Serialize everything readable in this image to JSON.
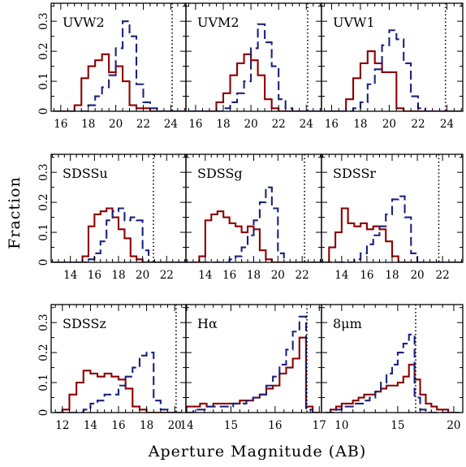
{
  "figure": {
    "ylabel": "Fraction",
    "xlabel": "Aperture Magnitude (AB)"
  },
  "colors": {
    "solid_series": "#8b0000",
    "dashed_series": "#1a237e",
    "axes": "#000000"
  },
  "chart_data": [
    {
      "type": "histogram",
      "label": "UVW2",
      "xlim": [
        15.3,
        25.1
      ],
      "ylim": [
        0,
        0.36
      ],
      "xticks": [
        16,
        18,
        20,
        22,
        24
      ],
      "yticks": [
        0,
        0.1,
        0.2,
        0.3
      ],
      "limit_line_x": 24.1,
      "bins": [
        15.5,
        16,
        16.5,
        17,
        17.5,
        18,
        18.5,
        19,
        19.5,
        20,
        20.5,
        21,
        21.5,
        22,
        22.5,
        23,
        23.5,
        24,
        24.5
      ],
      "bin_width": 0.5,
      "series": [
        {
          "style": "solid",
          "values": [
            0,
            0,
            0,
            0.02,
            0.11,
            0.15,
            0.17,
            0.19,
            0.13,
            0.15,
            0.1,
            0.02,
            0.01,
            0.01,
            0,
            0,
            0,
            0,
            0
          ]
        },
        {
          "style": "dashed",
          "values": [
            0,
            0,
            0,
            0,
            0,
            0.02,
            0.05,
            0.08,
            0.12,
            0.21,
            0.3,
            0.25,
            0.09,
            0.03,
            0.01,
            0,
            0,
            0,
            0
          ]
        }
      ]
    },
    {
      "type": "histogram",
      "label": "UVM2",
      "xlim": [
        15.3,
        25.1
      ],
      "ylim": [
        0,
        0.36
      ],
      "xticks": [
        16,
        18,
        20,
        22,
        24
      ],
      "yticks": [
        0,
        0.1,
        0.2,
        0.3
      ],
      "limit_line_x": 24.1,
      "bins": [
        15.5,
        16,
        16.5,
        17,
        17.5,
        18,
        18.5,
        19,
        19.5,
        20,
        20.5,
        21,
        21.5,
        22,
        22.5,
        23,
        23.5,
        24,
        24.5
      ],
      "bin_width": 0.5,
      "series": [
        {
          "style": "solid",
          "values": [
            0,
            0,
            0,
            0,
            0.03,
            0.06,
            0.12,
            0.16,
            0.19,
            0.17,
            0.12,
            0.04,
            0.01,
            0,
            0,
            0,
            0,
            0,
            0
          ]
        },
        {
          "style": "dashed",
          "values": [
            0,
            0,
            0,
            0,
            0,
            0.01,
            0.03,
            0.06,
            0.1,
            0.21,
            0.29,
            0.23,
            0.15,
            0.04,
            0.01,
            0,
            0,
            0,
            0
          ]
        }
      ]
    },
    {
      "type": "histogram",
      "label": "UVW1",
      "xlim": [
        15.3,
        25.1
      ],
      "ylim": [
        0,
        0.36
      ],
      "xticks": [
        16,
        18,
        20,
        22,
        24
      ],
      "yticks": [
        0,
        0.1,
        0.2,
        0.3
      ],
      "limit_line_x": 23.9,
      "bins": [
        15.5,
        16,
        16.5,
        17,
        17.5,
        18,
        18.5,
        19,
        19.5,
        20,
        20.5,
        21,
        21.5,
        22,
        22.5,
        23,
        23.5,
        24,
        24.5
      ],
      "bin_width": 0.5,
      "series": [
        {
          "style": "solid",
          "values": [
            0,
            0,
            0,
            0.04,
            0.11,
            0.16,
            0.2,
            0.16,
            0.13,
            0.13,
            0.01,
            0,
            0,
            0,
            0,
            0,
            0,
            0,
            0
          ]
        },
        {
          "style": "dashed",
          "values": [
            0,
            0,
            0,
            0,
            0.01,
            0.03,
            0.09,
            0.14,
            0.22,
            0.27,
            0.24,
            0.16,
            0.05,
            0.01,
            0,
            0,
            0,
            0,
            0
          ]
        }
      ]
    },
    {
      "type": "histogram",
      "label": "SDSSu",
      "xlim": [
        12.4,
        23.6
      ],
      "ylim": [
        0,
        0.36
      ],
      "xticks": [
        14,
        16,
        18,
        20,
        22
      ],
      "yticks": [
        0,
        0.1,
        0.2,
        0.3
      ],
      "limit_line_x": 20.9,
      "bins": [
        12.5,
        13,
        13.5,
        14,
        14.5,
        15,
        15.5,
        16,
        16.5,
        17,
        17.5,
        18,
        18.5,
        19,
        19.5,
        20,
        20.5,
        21,
        21.5,
        22,
        22.5,
        23
      ],
      "bin_width": 0.5,
      "series": [
        {
          "style": "solid",
          "values": [
            0,
            0,
            0,
            0,
            0,
            0.02,
            0.12,
            0.16,
            0.17,
            0.18,
            0.15,
            0.11,
            0.08,
            0.02,
            0.01,
            0,
            0,
            0,
            0,
            0,
            0,
            0
          ]
        },
        {
          "style": "dashed",
          "values": [
            0,
            0,
            0,
            0,
            0,
            0,
            0.01,
            0.03,
            0.07,
            0.14,
            0.17,
            0.18,
            0.14,
            0.15,
            0.14,
            0.04,
            0,
            0,
            0,
            0,
            0,
            0
          ]
        }
      ]
    },
    {
      "type": "histogram",
      "label": "SDSSg",
      "xlim": [
        12.4,
        23.6
      ],
      "ylim": [
        0,
        0.36
      ],
      "xticks": [
        14,
        16,
        18,
        20,
        22
      ],
      "yticks": [
        0,
        0.1,
        0.2,
        0.3
      ],
      "limit_line_x": 22.2,
      "bins": [
        12.5,
        13,
        13.5,
        14,
        14.5,
        15,
        15.5,
        16,
        16.5,
        17,
        17.5,
        18,
        18.5,
        19,
        19.5,
        20,
        20.5,
        21,
        21.5,
        22,
        22.5,
        23
      ],
      "bin_width": 0.5,
      "series": [
        {
          "style": "solid",
          "values": [
            0,
            0,
            0.02,
            0.14,
            0.16,
            0.17,
            0.15,
            0.13,
            0.12,
            0.1,
            0.12,
            0.11,
            0.04,
            0.01,
            0,
            0,
            0,
            0,
            0,
            0,
            0,
            0
          ]
        },
        {
          "style": "dashed",
          "values": [
            0,
            0,
            0,
            0,
            0,
            0,
            0,
            0.01,
            0.02,
            0.05,
            0.09,
            0.14,
            0.2,
            0.25,
            0.18,
            0.03,
            0,
            0,
            0,
            0,
            0,
            0
          ]
        }
      ]
    },
    {
      "type": "histogram",
      "label": "SDSSr",
      "xlim": [
        12.4,
        23.6
      ],
      "ylim": [
        0,
        0.36
      ],
      "xticks": [
        14,
        16,
        18,
        20,
        22
      ],
      "yticks": [
        0,
        0.1,
        0.2,
        0.3
      ],
      "limit_line_x": 21.7,
      "bins": [
        12.5,
        13,
        13.5,
        14,
        14.5,
        15,
        15.5,
        16,
        16.5,
        17,
        17.5,
        18,
        18.5,
        19,
        19.5,
        20,
        20.5,
        21,
        21.5,
        22,
        22.5,
        23
      ],
      "bin_width": 0.5,
      "series": [
        {
          "style": "solid",
          "values": [
            0,
            0.05,
            0.1,
            0.18,
            0.13,
            0.12,
            0.13,
            0.11,
            0.12,
            0.11,
            0.07,
            0.02,
            0,
            0,
            0,
            0,
            0,
            0,
            0,
            0,
            0,
            0
          ]
        },
        {
          "style": "dashed",
          "values": [
            0,
            0,
            0,
            0,
            0,
            0.01,
            0.03,
            0.06,
            0.09,
            0.12,
            0.16,
            0.21,
            0.22,
            0.15,
            0.03,
            0,
            0,
            0,
            0,
            0,
            0,
            0
          ]
        }
      ]
    },
    {
      "type": "histogram",
      "label": "SDSSz",
      "xlim": [
        11.2,
        20.8
      ],
      "ylim": [
        0,
        0.36
      ],
      "xticks": [
        12,
        14,
        16,
        18,
        20
      ],
      "yticks": [
        0,
        0.1,
        0.2,
        0.3
      ],
      "limit_line_x": 20.1,
      "bins": [
        11.5,
        12,
        12.5,
        13,
        13.5,
        14,
        14.5,
        15,
        15.5,
        16,
        16.5,
        17,
        17.5,
        18,
        18.5,
        19,
        19.5,
        20
      ],
      "bin_width": 0.5,
      "series": [
        {
          "style": "solid",
          "values": [
            0,
            0.01,
            0.06,
            0.1,
            0.14,
            0.13,
            0.12,
            0.13,
            0.12,
            0.11,
            0.08,
            0.02,
            0.01,
            0,
            0,
            0,
            0,
            0
          ]
        },
        {
          "style": "dashed",
          "values": [
            0,
            0,
            0,
            0,
            0.01,
            0.03,
            0.04,
            0.06,
            0.06,
            0.09,
            0.12,
            0.15,
            0.19,
            0.2,
            0.04,
            0.01,
            0,
            0
          ]
        }
      ]
    },
    {
      "type": "histogram",
      "label": "Hα",
      "xlim": [
        13.98,
        17.05
      ],
      "ylim": [
        0,
        0.36
      ],
      "xticks": [
        14,
        15,
        16,
        17
      ],
      "yticks": [
        0,
        0.1,
        0.2,
        0.3
      ],
      "limit_line_x": 16.72,
      "bins": [
        14,
        14.15,
        14.3,
        14.45,
        14.6,
        14.75,
        14.9,
        15.05,
        15.2,
        15.35,
        15.5,
        15.65,
        15.8,
        15.95,
        16.1,
        16.25,
        16.4,
        16.55,
        16.7,
        16.85
      ],
      "bin_width": 0.15,
      "series": [
        {
          "style": "solid",
          "values": [
            0.02,
            0.02,
            0.03,
            0.02,
            0.03,
            0.03,
            0.03,
            0.03,
            0.04,
            0.04,
            0.05,
            0.06,
            0.08,
            0.09,
            0.13,
            0.15,
            0.18,
            0.25,
            0.02,
            0
          ]
        },
        {
          "style": "dashed",
          "values": [
            0,
            0.01,
            0.01,
            0.02,
            0.02,
            0.02,
            0.02,
            0.03,
            0.03,
            0.04,
            0.05,
            0.06,
            0.09,
            0.12,
            0.16,
            0.21,
            0.27,
            0.32,
            0.01,
            0
          ]
        }
      ]
    },
    {
      "type": "histogram",
      "label": "8μm",
      "xlim": [
        8.2,
        20.8
      ],
      "ylim": [
        0,
        0.36
      ],
      "xticks": [
        10,
        15,
        20
      ],
      "yticks": [
        0,
        0.1,
        0.2,
        0.3
      ],
      "limit_line_x": 16.6,
      "bins": [
        8.5,
        9,
        9.5,
        10,
        10.5,
        11,
        11.5,
        12,
        12.5,
        13,
        13.5,
        14,
        14.5,
        15,
        15.5,
        16,
        16.5,
        17,
        17.5,
        18,
        18.5,
        19,
        19.5,
        20
      ],
      "bin_width": 0.5,
      "series": [
        {
          "style": "solid",
          "values": [
            0,
            0.01,
            0.02,
            0.03,
            0.03,
            0.04,
            0.05,
            0.06,
            0.06,
            0.07,
            0.08,
            0.09,
            0.09,
            0.1,
            0.12,
            0.16,
            0.11,
            0.06,
            0.03,
            0.02,
            0.01,
            0.01,
            0,
            0
          ]
        },
        {
          "style": "dashed",
          "values": [
            0,
            0,
            0.01,
            0.02,
            0.02,
            0.03,
            0.03,
            0.04,
            0.05,
            0.07,
            0.1,
            0.13,
            0.16,
            0.2,
            0.23,
            0.26,
            0.05,
            0.01,
            0,
            0,
            0,
            0,
            0,
            0
          ]
        }
      ]
    }
  ]
}
